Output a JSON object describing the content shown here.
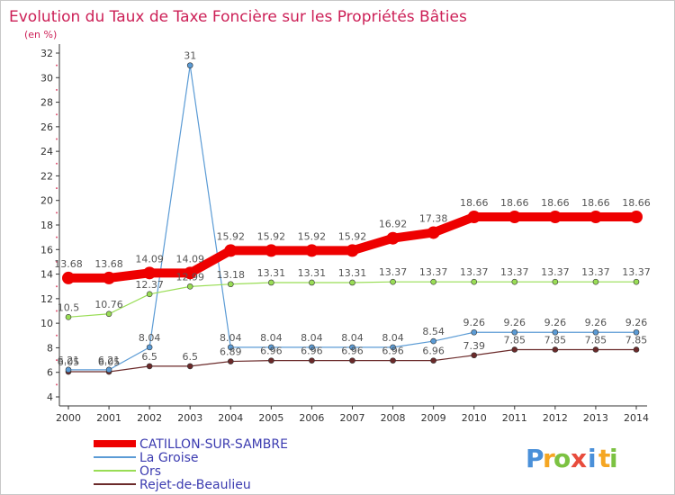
{
  "chart_data": {
    "type": "line",
    "title": "Evolution du Taux de Taxe Foncière sur les Propriétés Bâties",
    "subtitle": "(en %)",
    "x": [
      "2000",
      "2001",
      "2002",
      "2003",
      "2004",
      "2005",
      "2006",
      "2007",
      "2008",
      "2009",
      "2010",
      "2011",
      "2012",
      "2013",
      "2014"
    ],
    "ylim": [
      4,
      32
    ],
    "yticks": [
      4,
      6,
      8,
      10,
      12,
      14,
      16,
      18,
      20,
      22,
      24,
      26,
      28,
      30,
      32
    ],
    "grid": false,
    "legend_position": "bottom-left",
    "series": [
      {
        "name": "CATILLON-SUR-SAMBRE",
        "color": "#ee0000",
        "labels": [
          "13.68",
          "13.68",
          "14.09",
          "14.09",
          "15.92",
          "15.92",
          "15.92",
          "15.92",
          "16.92",
          "17.38",
          "18.66",
          "18.66",
          "18.66",
          "18.66",
          "18.66"
        ],
        "values": [
          13.68,
          13.68,
          14.09,
          14.09,
          15.92,
          15.92,
          15.92,
          15.92,
          16.92,
          17.38,
          18.66,
          18.66,
          18.66,
          18.66,
          18.66
        ]
      },
      {
        "name": "La Groise",
        "color": "#5b9bd5",
        "labels": [
          "6.21",
          "6.21",
          "8.04",
          "31",
          "8.04",
          "8.04",
          "8.04",
          "8.04",
          "8.04",
          "8.54",
          "9.26",
          "9.26",
          "9.26",
          "9.26",
          "9.26"
        ],
        "values": [
          6.21,
          6.21,
          8.04,
          31,
          8.04,
          8.04,
          8.04,
          8.04,
          8.04,
          8.54,
          9.26,
          9.26,
          9.26,
          9.26,
          9.26
        ]
      },
      {
        "name": "Ors",
        "color": "#99dd55",
        "labels": [
          "10.5",
          "10.76",
          "12.37",
          "12.99",
          "13.18",
          "13.31",
          "13.31",
          "13.31",
          "13.37",
          "13.37",
          "13.37",
          "13.37",
          "13.37",
          "13.37",
          "13.37"
        ],
        "values": [
          10.5,
          10.76,
          12.37,
          12.99,
          13.18,
          13.31,
          13.31,
          13.31,
          13.37,
          13.37,
          13.37,
          13.37,
          13.37,
          13.37,
          13.37
        ]
      },
      {
        "name": "Rejet-de-Beaulieu",
        "color": "#6b2a2a",
        "labels": [
          "6.05",
          "6.05",
          "6.5",
          "6.5",
          "6.89",
          "6.96",
          "6.96",
          "6.96",
          "6.96",
          "6.96",
          "7.39",
          "7.85",
          "7.85",
          "7.85",
          "7.85"
        ],
        "values": [
          6.05,
          6.05,
          6.5,
          6.5,
          6.89,
          6.96,
          6.96,
          6.96,
          6.96,
          6.96,
          7.39,
          7.85,
          7.85,
          7.85,
          7.85
        ]
      }
    ]
  },
  "brand": {
    "letters": [
      "P",
      "r",
      "o",
      "x",
      "i",
      "t",
      "i"
    ],
    "colors": [
      "#4a90d9",
      "#f5a623",
      "#7cc242",
      "#e84c3d",
      "#4a90d9",
      "#f5a623",
      "#7cc242"
    ]
  }
}
